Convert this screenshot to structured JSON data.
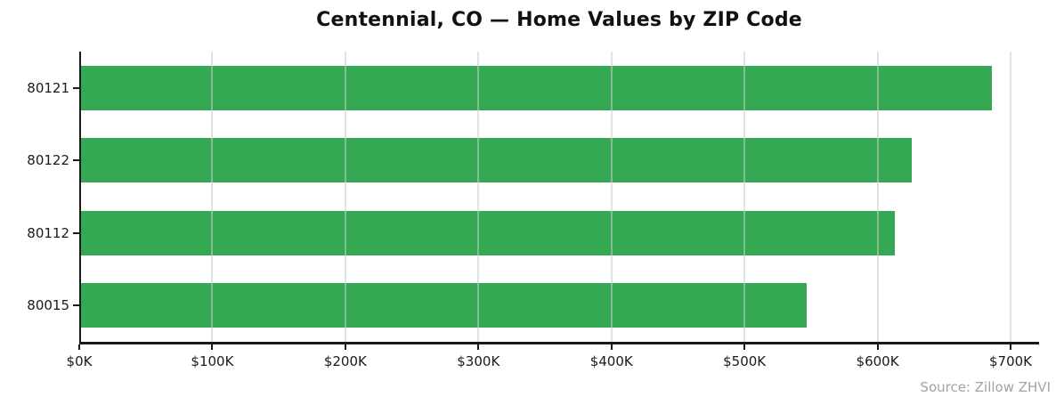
{
  "title": "Centennial, CO — Home Values by ZIP Code",
  "source_note": "Source: Zillow ZHVI",
  "colors": {
    "bar": "#34a853",
    "axis": "#1a1a1a",
    "grid": "#cccccc",
    "background": "#ffffff",
    "source_text": "#a3a3a3"
  },
  "chart_data": {
    "type": "bar",
    "orientation": "horizontal",
    "title": "Centennial, CO — Home Values by ZIP Code",
    "categories": [
      "80121",
      "80122",
      "80112",
      "80015"
    ],
    "values": [
      686000,
      626000,
      613000,
      547000
    ],
    "value_unit": "USD",
    "xlabel": "",
    "ylabel": "",
    "xlim": [
      0,
      700000
    ],
    "x_tick_values": [
      0,
      100000,
      200000,
      300000,
      400000,
      500000,
      600000,
      700000
    ],
    "x_tick_labels": [
      "$0K",
      "$100K",
      "$200K",
      "$300K",
      "$400K",
      "$500K",
      "$600K",
      "$700K"
    ],
    "grid": "vertical-over-bars",
    "legend": false,
    "annotation": "Source: Zillow ZHVI"
  }
}
